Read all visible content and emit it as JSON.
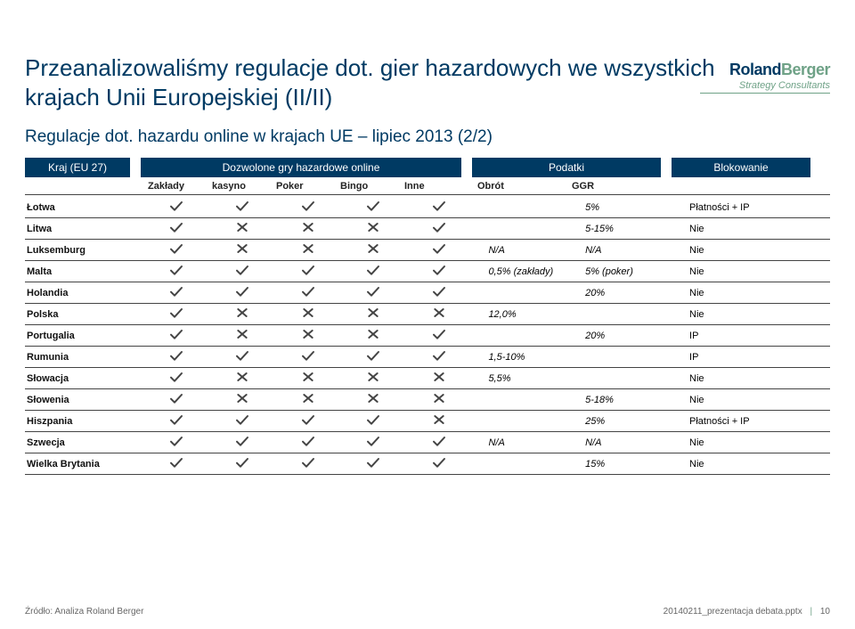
{
  "brand": {
    "name1": "Roland",
    "name2": "Berger",
    "tagline": "Strategy Consultants",
    "color_primary": "#003a63",
    "color_accent": "#6fa287"
  },
  "title": "Przeanalizowaliśmy regulacje dot. gier hazardowych we wszystkich krajach Unii Europejskiej (II/II)",
  "subtitle": "Regulacje dot. hazardu online w krajach UE – lipiec 2013 (2/2)",
  "headers": {
    "country": "Kraj (EU 27)",
    "allowed": "Dozwolone gry hazardowe online",
    "tax": "Podatki",
    "blocking": "Blokowanie"
  },
  "subheaders": {
    "allowed": [
      "Zakłady",
      "kasyno",
      "Poker",
      "Bingo",
      "Inne"
    ],
    "tax": [
      "Obrót",
      "GGR"
    ]
  },
  "mark_style": {
    "check_stroke": "#444444",
    "cross_stroke": "#444444"
  },
  "rows": [
    {
      "country": "Łotwa",
      "marks": [
        "y",
        "y",
        "y",
        "y",
        "y"
      ],
      "obr": "",
      "ggr": "5%",
      "block": "Płatności + IP"
    },
    {
      "country": "Litwa",
      "marks": [
        "y",
        "n",
        "n",
        "n",
        "y"
      ],
      "obr": "",
      "ggr": "5-15%",
      "block": "Nie"
    },
    {
      "country": "Luksemburg",
      "marks": [
        "y",
        "n",
        "n",
        "n",
        "y"
      ],
      "obr": "N/A",
      "ggr": "N/A",
      "block": "Nie"
    },
    {
      "country": "Malta",
      "marks": [
        "y",
        "y",
        "y",
        "y",
        "y"
      ],
      "obr": "0,5% (zakłady)",
      "ggr": "5% (poker)",
      "block": "Nie"
    },
    {
      "country": "Holandia",
      "marks": [
        "y",
        "y",
        "y",
        "y",
        "y"
      ],
      "obr": "",
      "ggr": "20%",
      "block": "Nie"
    },
    {
      "country": "Polska",
      "marks": [
        "y",
        "n",
        "n",
        "n",
        "n"
      ],
      "obr": "12,0%",
      "ggr": "",
      "block": "Nie"
    },
    {
      "country": "Portugalia",
      "marks": [
        "y",
        "n",
        "n",
        "n",
        "y"
      ],
      "obr": "",
      "ggr": "20%",
      "block": "IP"
    },
    {
      "country": "Rumunia",
      "marks": [
        "y",
        "y",
        "y",
        "y",
        "y"
      ],
      "obr": "1,5-10%",
      "ggr": "",
      "block": "IP"
    },
    {
      "country": "Słowacja",
      "marks": [
        "y",
        "n",
        "n",
        "n",
        "n"
      ],
      "obr": "5,5%",
      "ggr": "",
      "block": "Nie"
    },
    {
      "country": "Słowenia",
      "marks": [
        "y",
        "n",
        "n",
        "n",
        "n"
      ],
      "obr": "",
      "ggr": "5-18%",
      "block": "Nie"
    },
    {
      "country": "Hiszpania",
      "marks": [
        "y",
        "y",
        "y",
        "y",
        "n"
      ],
      "obr": "",
      "ggr": "25%",
      "block": "Płatności + IP"
    },
    {
      "country": "Szwecja",
      "marks": [
        "y",
        "y",
        "y",
        "y",
        "y"
      ],
      "obr": "N/A",
      "ggr": "N/A",
      "block": "Nie"
    },
    {
      "country": "Wielka Brytania",
      "marks": [
        "y",
        "y",
        "y",
        "y",
        "y"
      ],
      "obr": "",
      "ggr": "15%",
      "block": "Nie"
    }
  ],
  "source": "Źródło: Analiza Roland Berger",
  "footer": {
    "file": "20140211_prezentacja debata.pptx",
    "page": "10"
  }
}
